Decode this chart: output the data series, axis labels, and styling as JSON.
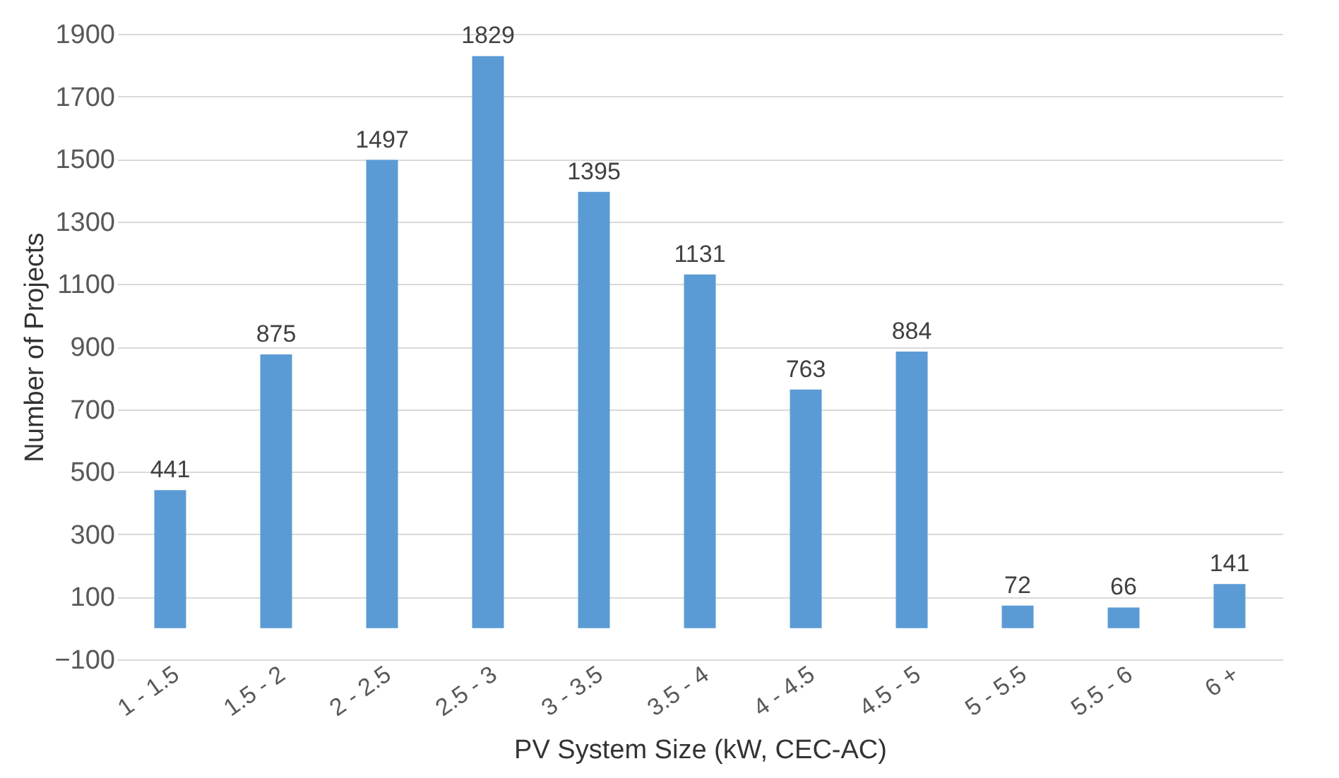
{
  "chart_data": {
    "type": "bar",
    "xlabel": "PV System Size (kW, CEC-AC)",
    "ylabel": "Number of Projects",
    "categories": [
      "1 - 1.5",
      "1.5 - 2",
      "2 - 2.5",
      "2.5 - 3",
      "3 - 3.5",
      "3.5 - 4",
      "4 - 4.5",
      "4.5 - 5",
      "5 - 5.5",
      "5.5 - 6",
      "6 +"
    ],
    "values": [
      441,
      875,
      1497,
      1829,
      1395,
      1131,
      763,
      884,
      72,
      66,
      141
    ],
    "color": "#5b9bd5",
    "ylim": [
      -100,
      1900
    ],
    "yticks": [
      -100,
      100,
      300,
      500,
      700,
      900,
      1100,
      1300,
      1500,
      1700,
      1900
    ],
    "grid": "y",
    "data_labels": true
  }
}
